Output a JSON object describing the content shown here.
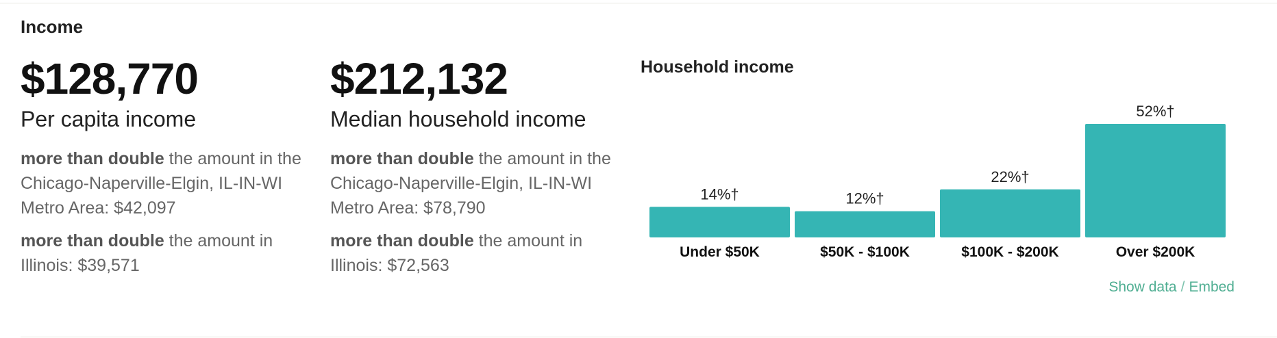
{
  "section": {
    "title": "Income"
  },
  "per_capita": {
    "value": "$128,770",
    "label": "Per capita income",
    "compare_metro_bold": "more than double",
    "compare_metro_rest": " the amount in the Chicago-Naperville-Elgin, IL-IN-WI Metro Area: $42,097",
    "compare_state_bold": "more than double",
    "compare_state_rest": " the amount in Illinois: $39,571"
  },
  "median_household": {
    "value": "$212,132",
    "label": "Median household income",
    "compare_metro_bold": "more than double",
    "compare_metro_rest": " the amount in the Chicago-Naperville-Elgin, IL-IN-WI Metro Area: $78,790",
    "compare_state_bold": "more than double",
    "compare_state_rest": " the amount in Illinois: $72,563"
  },
  "chart_data": {
    "type": "bar",
    "title": "Household income",
    "categories": [
      "Under $50K",
      "$50K - $100K",
      "$100K - $200K",
      "Over $200K"
    ],
    "values": [
      14,
      12,
      22,
      52
    ],
    "value_labels": [
      "14%†",
      "12%†",
      "22%†",
      "52%†"
    ],
    "ylim": [
      0,
      52
    ],
    "xlabel": "",
    "ylabel": "",
    "grid": false,
    "color": "#35b5b4"
  },
  "links": {
    "show_data": "Show data",
    "separator": "/",
    "embed": "Embed"
  }
}
